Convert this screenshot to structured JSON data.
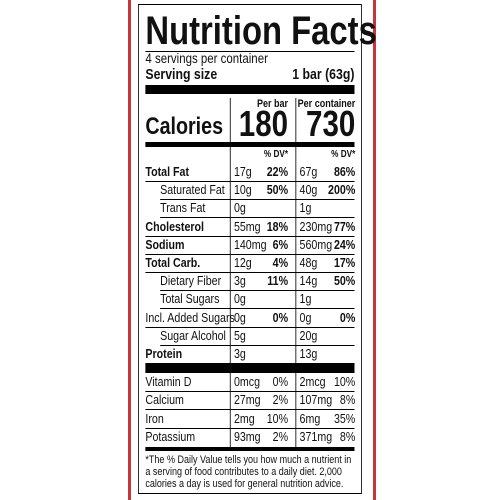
{
  "header": {
    "title": "Nutrition Facts",
    "servings": "4 servings per container",
    "serving_size_label": "Serving size",
    "serving_size_value": "1 bar (63g)"
  },
  "columns": [
    "Per bar",
    "Per container"
  ],
  "calories": {
    "label": "Calories",
    "values": [
      "180",
      "730"
    ]
  },
  "dv_header": "% DV*",
  "rows": [
    {
      "label": "Total Fat",
      "bold": true,
      "bar": {
        "amount": "17g",
        "dv": "22%"
      },
      "container": {
        "amount": "67g",
        "dv": "86%"
      }
    },
    {
      "label": "Saturated Fat",
      "indent": true,
      "bar": {
        "amount": "10g",
        "dv": "50%"
      },
      "container": {
        "amount": "40g",
        "dv": "200%"
      }
    },
    {
      "label": "Trans Fat",
      "indent": true,
      "bar": {
        "amount": "0g"
      },
      "container": {
        "amount": "1g"
      }
    },
    {
      "label": "Cholesterol",
      "bold": true,
      "bar": {
        "amount": "55mg",
        "dv": "18%"
      },
      "container": {
        "amount": "230mg",
        "dv": "77%"
      }
    },
    {
      "label": "Sodium",
      "bold": true,
      "bar": {
        "amount": "140mg",
        "dv": "6%"
      },
      "container": {
        "amount": "560mg",
        "dv": "24%"
      }
    },
    {
      "label": "Total Carb.",
      "bold": true,
      "bar": {
        "amount": "12g",
        "dv": "4%"
      },
      "container": {
        "amount": "48g",
        "dv": "17%"
      }
    },
    {
      "label": "Dietary Fiber",
      "indent": true,
      "bar": {
        "amount": "3g",
        "dv": "11%"
      },
      "container": {
        "amount": "14g",
        "dv": "50%"
      }
    },
    {
      "label": "Total Sugars",
      "indent": true,
      "bar": {
        "amount": "0g"
      },
      "container": {
        "amount": "1g"
      }
    },
    {
      "label": "Incl. Added Sugars",
      "bar": {
        "amount": "0g",
        "dv": "0%"
      },
      "container": {
        "amount": "0g",
        "dv": "0%"
      }
    },
    {
      "label": "Sugar Alcohol",
      "indent": true,
      "bar": {
        "amount": "5g"
      },
      "container": {
        "amount": "20g"
      }
    },
    {
      "label": "Protein",
      "bold": true,
      "bar": {
        "amount": "3g"
      },
      "container": {
        "amount": "13g"
      }
    }
  ],
  "vitamins": [
    {
      "label": "Vitamin D",
      "bar": {
        "amount": "0mcg",
        "dv": "0%"
      },
      "container": {
        "amount": "2mcg",
        "dv": "10%"
      }
    },
    {
      "label": "Calcium",
      "bar": {
        "amount": "27mg",
        "dv": "2%"
      },
      "container": {
        "amount": "107mg",
        "dv": "8%"
      }
    },
    {
      "label": "Iron",
      "bar": {
        "amount": "2mg",
        "dv": "10%"
      },
      "container": {
        "amount": "6mg",
        "dv": "35%"
      }
    },
    {
      "label": "Potassium",
      "bar": {
        "amount": "93mg",
        "dv": "2%"
      },
      "container": {
        "amount": "371mg",
        "dv": "8%"
      }
    }
  ],
  "footnote": "*The % Daily Value tells you how much a nutrient in a serving of food contributes to a daily diet. 2,000 calories a day is used for general nutrition advice."
}
